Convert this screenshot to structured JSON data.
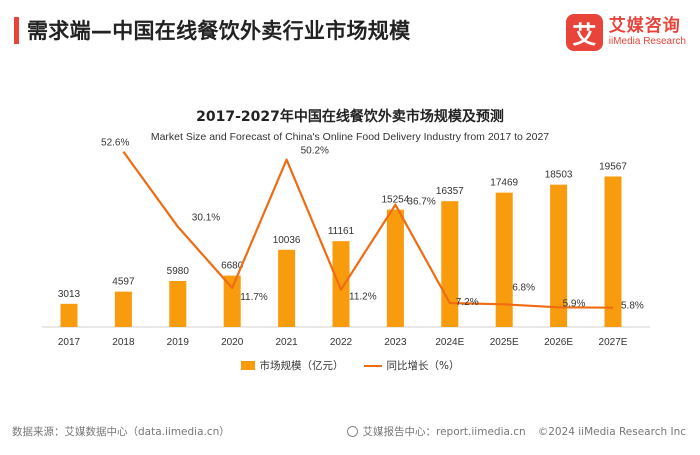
{
  "header": {
    "title": "需求端—中国在线餐饮外卖行业市场规模",
    "logo_icon": "艾",
    "logo_cn": "艾媒咨询",
    "logo_en": "iiMedia Research"
  },
  "colors": {
    "accent": "#e8443a",
    "bar": "#f89b0c",
    "line": "#ef6c12"
  },
  "chart_data": {
    "type": "bar",
    "title": "2017-2027年中国在线餐饮外卖市场规模及预测",
    "subtitle": "Market Size and Forecast of China's Online Food Delivery Industry from 2017 to 2027",
    "categories": [
      "2017",
      "2018",
      "2019",
      "2020",
      "2021",
      "2022",
      "2023",
      "2024E",
      "2025E",
      "2026E",
      "2027E"
    ],
    "series": [
      {
        "name": "市场规模（亿元）",
        "type": "bar",
        "values": [
          3013,
          4597,
          5980,
          6680,
          10036,
          11161,
          15254,
          16357,
          17469,
          18503,
          19567
        ],
        "labels": [
          "3013",
          "4597",
          "5980",
          "6680",
          "10036",
          "11161",
          "15254",
          "16357",
          "17469",
          "18503",
          "19567"
        ]
      },
      {
        "name": "同比增长（%）",
        "type": "line",
        "x": [
          "2018",
          "2019",
          "2020",
          "2021",
          "2022",
          "2023",
          "2024E",
          "2025E",
          "2026E",
          "2027E"
        ],
        "values": [
          52.6,
          30.1,
          11.7,
          50.2,
          11.2,
          36.7,
          7.2,
          6.8,
          5.9,
          5.8
        ],
        "labels": [
          "52.6%",
          "30.1%",
          "11.7%",
          "50.2%",
          "11.2%",
          "36.7%",
          "7.2%",
          "6.8%",
          "5.9%",
          "5.8%"
        ]
      }
    ],
    "y_bar_range": [
      0,
      26000
    ],
    "y_line_range": [
      0,
      60
    ],
    "legend": [
      "市场规模（亿元）",
      "同比增长（%）"
    ]
  },
  "footer": {
    "source": "数据来源：艾媒数据中心（data.iimedia.cn）",
    "report_center": "艾媒报告中心：report.iimedia.cn",
    "copyright": "©2024  iiMedia Research  Inc"
  }
}
